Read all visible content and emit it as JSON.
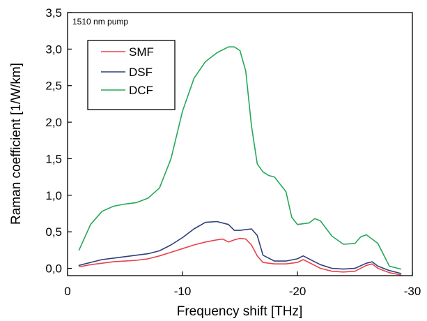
{
  "chart_data": {
    "type": "line",
    "annotation": "1510 nm pump",
    "xlabel": "Frequency shift [THz]",
    "ylabel": "Raman coefficient [1/W/km]",
    "xlim": [
      0,
      -30
    ],
    "ylim": [
      -0.1,
      3.5
    ],
    "x_ticks": [
      0,
      -10,
      -20,
      -30
    ],
    "x_tick_labels": [
      "0",
      "-10",
      "-20",
      "-30"
    ],
    "y_ticks": [
      0,
      0.5,
      1,
      1.5,
      2,
      2.5,
      3,
      3.5
    ],
    "y_tick_labels": [
      "0,0",
      "0,5",
      "1,0",
      "1,5",
      "2,0",
      "2,5",
      "3,0",
      "3,5"
    ],
    "grid": false,
    "legend_position": "top-left",
    "series": [
      {
        "name": "SMF",
        "color": "#e8434a",
        "x": [
          -1,
          -2,
          -3,
          -4,
          -5,
          -6,
          -7,
          -8,
          -9,
          -10,
          -11,
          -12,
          -13,
          -13.5,
          -14,
          -14.5,
          -15,
          -15.5,
          -16,
          -16.5,
          -17,
          -18,
          -19,
          -20,
          -20.5,
          -21,
          -22,
          -23,
          -24,
          -25,
          -26,
          -26.5,
          -27,
          -28,
          -29
        ],
        "y": [
          0.02,
          0.05,
          0.07,
          0.09,
          0.1,
          0.11,
          0.13,
          0.17,
          0.22,
          0.27,
          0.32,
          0.36,
          0.39,
          0.4,
          0.36,
          0.39,
          0.41,
          0.4,
          0.32,
          0.17,
          0.08,
          0.06,
          0.06,
          0.08,
          0.12,
          0.08,
          0.0,
          -0.04,
          -0.05,
          -0.04,
          0.04,
          0.06,
          0.0,
          -0.06,
          -0.09
        ]
      },
      {
        "name": "DSF",
        "color": "#2e3f7a",
        "x": [
          -1,
          -2,
          -3,
          -4,
          -5,
          -6,
          -7,
          -8,
          -9,
          -10,
          -11,
          -12,
          -13,
          -14,
          -14.5,
          -15,
          -16,
          -16.5,
          -17,
          -18,
          -19,
          -20,
          -20.5,
          -21,
          -22,
          -23,
          -24,
          -25,
          -26,
          -26.5,
          -27,
          -28,
          -29
        ],
        "y": [
          0.04,
          0.08,
          0.12,
          0.14,
          0.16,
          0.18,
          0.2,
          0.24,
          0.32,
          0.42,
          0.54,
          0.63,
          0.64,
          0.6,
          0.52,
          0.52,
          0.54,
          0.45,
          0.18,
          0.1,
          0.1,
          0.13,
          0.17,
          0.13,
          0.05,
          0.0,
          -0.01,
          0.0,
          0.07,
          0.09,
          0.03,
          -0.03,
          -0.07
        ]
      },
      {
        "name": "DCF",
        "color": "#25a85a",
        "x": [
          -1,
          -2,
          -3,
          -4,
          -5,
          -6,
          -7,
          -8,
          -9,
          -10,
          -11,
          -12,
          -13,
          -14,
          -14.5,
          -15,
          -15.5,
          -16,
          -16.5,
          -17,
          -17.5,
          -18,
          -19,
          -19.5,
          -20,
          -21,
          -21.5,
          -22,
          -23,
          -24,
          -25,
          -25.5,
          -26,
          -27,
          -28,
          -29
        ],
        "y": [
          0.25,
          0.6,
          0.78,
          0.85,
          0.88,
          0.9,
          0.96,
          1.1,
          1.5,
          2.15,
          2.6,
          2.83,
          2.95,
          3.03,
          3.03,
          2.98,
          2.7,
          1.95,
          1.43,
          1.32,
          1.27,
          1.25,
          1.05,
          0.7,
          0.6,
          0.62,
          0.68,
          0.65,
          0.44,
          0.33,
          0.34,
          0.43,
          0.46,
          0.34,
          0.03,
          -0.01
        ]
      }
    ]
  }
}
